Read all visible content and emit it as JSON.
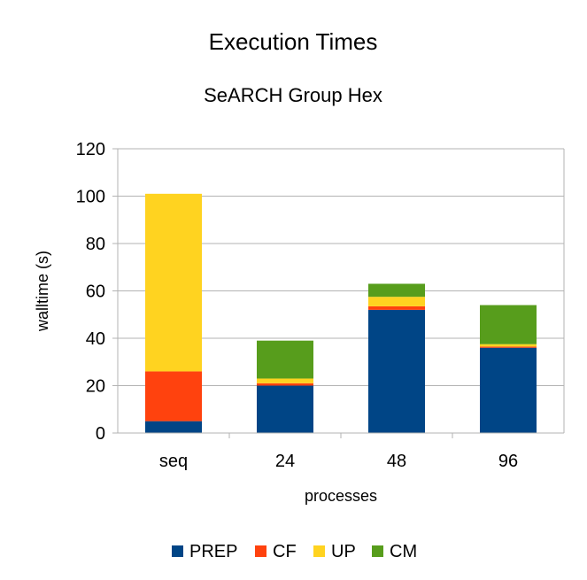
{
  "chart_data": {
    "type": "bar",
    "stacked": true,
    "title": "Execution Times",
    "subtitle": "SeARCH Group Hex",
    "xlabel": "processes",
    "ylabel": "walltime (s)",
    "ylim": [
      0,
      120
    ],
    "yticks": [
      "0",
      "20",
      "40",
      "60",
      "80",
      "100",
      "120"
    ],
    "grid": true,
    "legend_position": "bottom",
    "categories": [
      "seq",
      "24",
      "48",
      "96"
    ],
    "series": [
      {
        "name": "PREP",
        "color": "#004586",
        "values": [
          5,
          20,
          52,
          36
        ]
      },
      {
        "name": "CF",
        "color": "#ff420e",
        "values": [
          21,
          1,
          1.5,
          0.5
        ]
      },
      {
        "name": "UP",
        "color": "#ffd320",
        "values": [
          75,
          2,
          4,
          1
        ]
      },
      {
        "name": "CM",
        "color": "#579d1c",
        "values": [
          0,
          16,
          5.5,
          16.5
        ]
      }
    ]
  }
}
